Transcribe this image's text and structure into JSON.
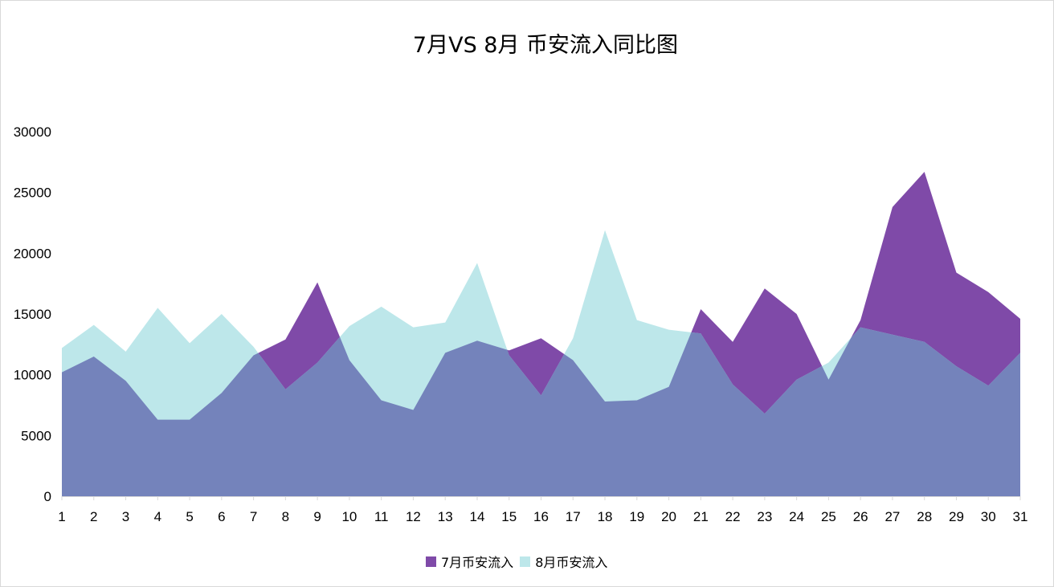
{
  "chart_data": {
    "type": "area",
    "title": "7月VS 8月 币安流入同比图",
    "x": [
      "1",
      "2",
      "3",
      "4",
      "5",
      "6",
      "7",
      "8",
      "9",
      "10",
      "11",
      "12",
      "13",
      "14",
      "15",
      "16",
      "17",
      "18",
      "19",
      "20",
      "21",
      "22",
      "23",
      "24",
      "25",
      "26",
      "27",
      "28",
      "29",
      "30",
      "31"
    ],
    "ylim": [
      0,
      30000
    ],
    "yticks": [
      0,
      5000,
      10000,
      15000,
      20000,
      25000,
      30000
    ],
    "grid": false,
    "legend_position": "bottom",
    "series": [
      {
        "name": "7月币安流入",
        "color": "#7f4aa8",
        "values": [
          10200,
          11500,
          9500,
          6300,
          6300,
          8500,
          11600,
          12900,
          17600,
          11200,
          7900,
          7100,
          11800,
          12800,
          12000,
          13000,
          11200,
          7800,
          7900,
          9000,
          15400,
          12700,
          17100,
          15000,
          9600,
          14500,
          23800,
          26700,
          18400,
          16800,
          14600
        ]
      },
      {
        "name": "8月币安流入",
        "color": "#bde7ea",
        "values": [
          12200,
          14100,
          11900,
          15500,
          12600,
          15000,
          12300,
          8800,
          11000,
          14000,
          15600,
          13900,
          14300,
          19200,
          11600,
          8300,
          13000,
          21900,
          14500,
          13700,
          13400,
          9200,
          6800,
          9600,
          11000,
          13900,
          13300,
          12700,
          10700,
          9100,
          11800
        ]
      }
    ],
    "overlap_color": "#7483bb"
  }
}
